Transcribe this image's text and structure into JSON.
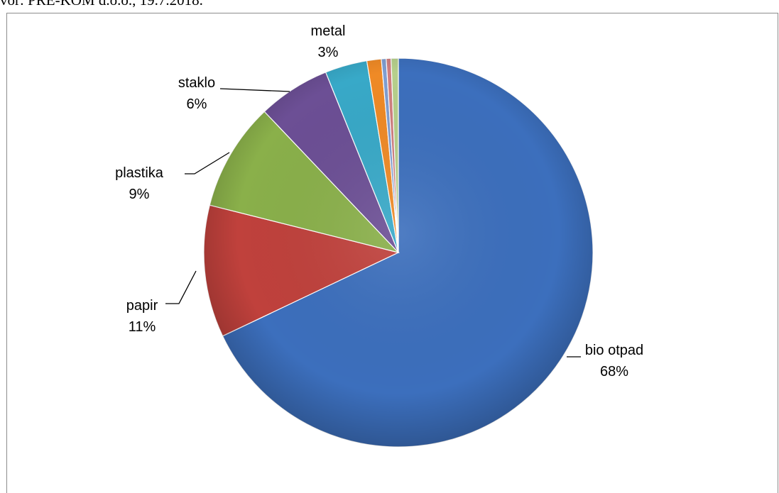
{
  "header": {
    "caption": "vor: PRE-KOM d.o.o., 19.7.2018."
  },
  "chart_data": {
    "type": "pie",
    "title": "",
    "start_angle_deg": 0,
    "direction": "clockwise",
    "slices": [
      {
        "category": "bio otpad",
        "percent_label": "68%",
        "value": 68.0,
        "color": "#3c6fbd",
        "labeled": true
      },
      {
        "category": "papir",
        "percent_label": "11%",
        "value": 11.0,
        "color": "#c0413c",
        "labeled": true
      },
      {
        "category": "plastika",
        "percent_label": "9%",
        "value": 9.0,
        "color": "#8ab04a",
        "labeled": true
      },
      {
        "category": "staklo",
        "percent_label": "6%",
        "value": 6.0,
        "color": "#6c4f95",
        "labeled": true
      },
      {
        "category": "metal",
        "percent_label": "3%",
        "value": 3.5,
        "color": "#38a9c8",
        "labeled": true
      },
      {
        "category": "",
        "percent_label": "",
        "value": 1.2,
        "color": "#ef8a26",
        "labeled": false
      },
      {
        "category": "",
        "percent_label": "",
        "value": 0.4,
        "color": "#7f9ed1",
        "labeled": false
      },
      {
        "category": "",
        "percent_label": "",
        "value": 0.4,
        "color": "#cf7f80",
        "labeled": false
      },
      {
        "category": "",
        "percent_label": "",
        "value": 0.6,
        "color": "#b6cf8c",
        "labeled": false
      }
    ],
    "legend": "none",
    "labels_outside_with_leader_lines": true
  }
}
